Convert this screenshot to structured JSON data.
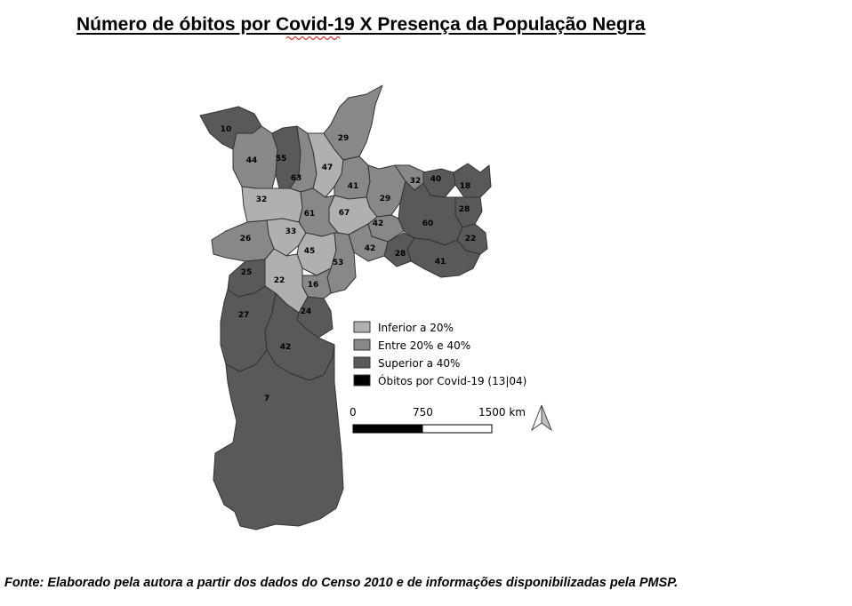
{
  "title": "Número de óbitos por Covid-19 X Presença da População Negra",
  "source": "Fonte: Elaborado pela autora a partir dos dados do Censo 2010 e de informações disponibilizadas pela PMSP.",
  "colors": {
    "inferior": "#b0b0b0",
    "entre": "#888888",
    "superior": "#595959",
    "obitos": "#000000",
    "border": "#333333"
  },
  "legend": [
    {
      "key": "inferior",
      "label": "Inferior a 20%"
    },
    {
      "key": "entre",
      "label": "Entre 20% e 40%"
    },
    {
      "key": "superior",
      "label": "Superior a 40%"
    },
    {
      "key": "obitos",
      "label": "Óbitos por Covid-19 (13|04)"
    }
  ],
  "scale_bar": {
    "labels": [
      "0",
      "750",
      "1500 km"
    ]
  },
  "north_arrow": "north-arrow-icon",
  "regions": [
    {
      "id": "r10",
      "value": "10",
      "class": "superior"
    },
    {
      "id": "r44",
      "value": "44",
      "class": "entre"
    },
    {
      "id": "r55",
      "value": "55",
      "class": "superior"
    },
    {
      "id": "r63",
      "value": "63",
      "class": "entre"
    },
    {
      "id": "r47",
      "value": "47",
      "class": "inferior"
    },
    {
      "id": "r29n",
      "value": "29",
      "class": "entre"
    },
    {
      "id": "r41n",
      "value": "41",
      "class": "entre"
    },
    {
      "id": "r29e",
      "value": "29",
      "class": "entre"
    },
    {
      "id": "r32e",
      "value": "32",
      "class": "entre"
    },
    {
      "id": "r40",
      "value": "40",
      "class": "superior"
    },
    {
      "id": "r18",
      "value": "18",
      "class": "superior"
    },
    {
      "id": "r28e",
      "value": "28",
      "class": "superior"
    },
    {
      "id": "r60",
      "value": "60",
      "class": "superior"
    },
    {
      "id": "r22e",
      "value": "22",
      "class": "superior"
    },
    {
      "id": "r41e",
      "value": "41",
      "class": "superior"
    },
    {
      "id": "r28s",
      "value": "28",
      "class": "superior"
    },
    {
      "id": "r42e",
      "value": "42",
      "class": "entre"
    },
    {
      "id": "r42c",
      "value": "42",
      "class": "entre"
    },
    {
      "id": "r67",
      "value": "67",
      "class": "inferior"
    },
    {
      "id": "r61",
      "value": "61",
      "class": "entre"
    },
    {
      "id": "r32w",
      "value": "32",
      "class": "inferior"
    },
    {
      "id": "r33",
      "value": "33",
      "class": "inferior"
    },
    {
      "id": "r26",
      "value": "26",
      "class": "entre"
    },
    {
      "id": "r45",
      "value": "45",
      "class": "inferior"
    },
    {
      "id": "r53",
      "value": "53",
      "class": "entre"
    },
    {
      "id": "r16",
      "value": "16",
      "class": "entre"
    },
    {
      "id": "r22s",
      "value": "22",
      "class": "inferior"
    },
    {
      "id": "r25",
      "value": "25",
      "class": "superior"
    },
    {
      "id": "r24",
      "value": "24",
      "class": "superior"
    },
    {
      "id": "r27",
      "value": "27",
      "class": "superior"
    },
    {
      "id": "r42s",
      "value": "42",
      "class": "superior"
    },
    {
      "id": "r7",
      "value": "7",
      "class": "superior"
    }
  ]
}
